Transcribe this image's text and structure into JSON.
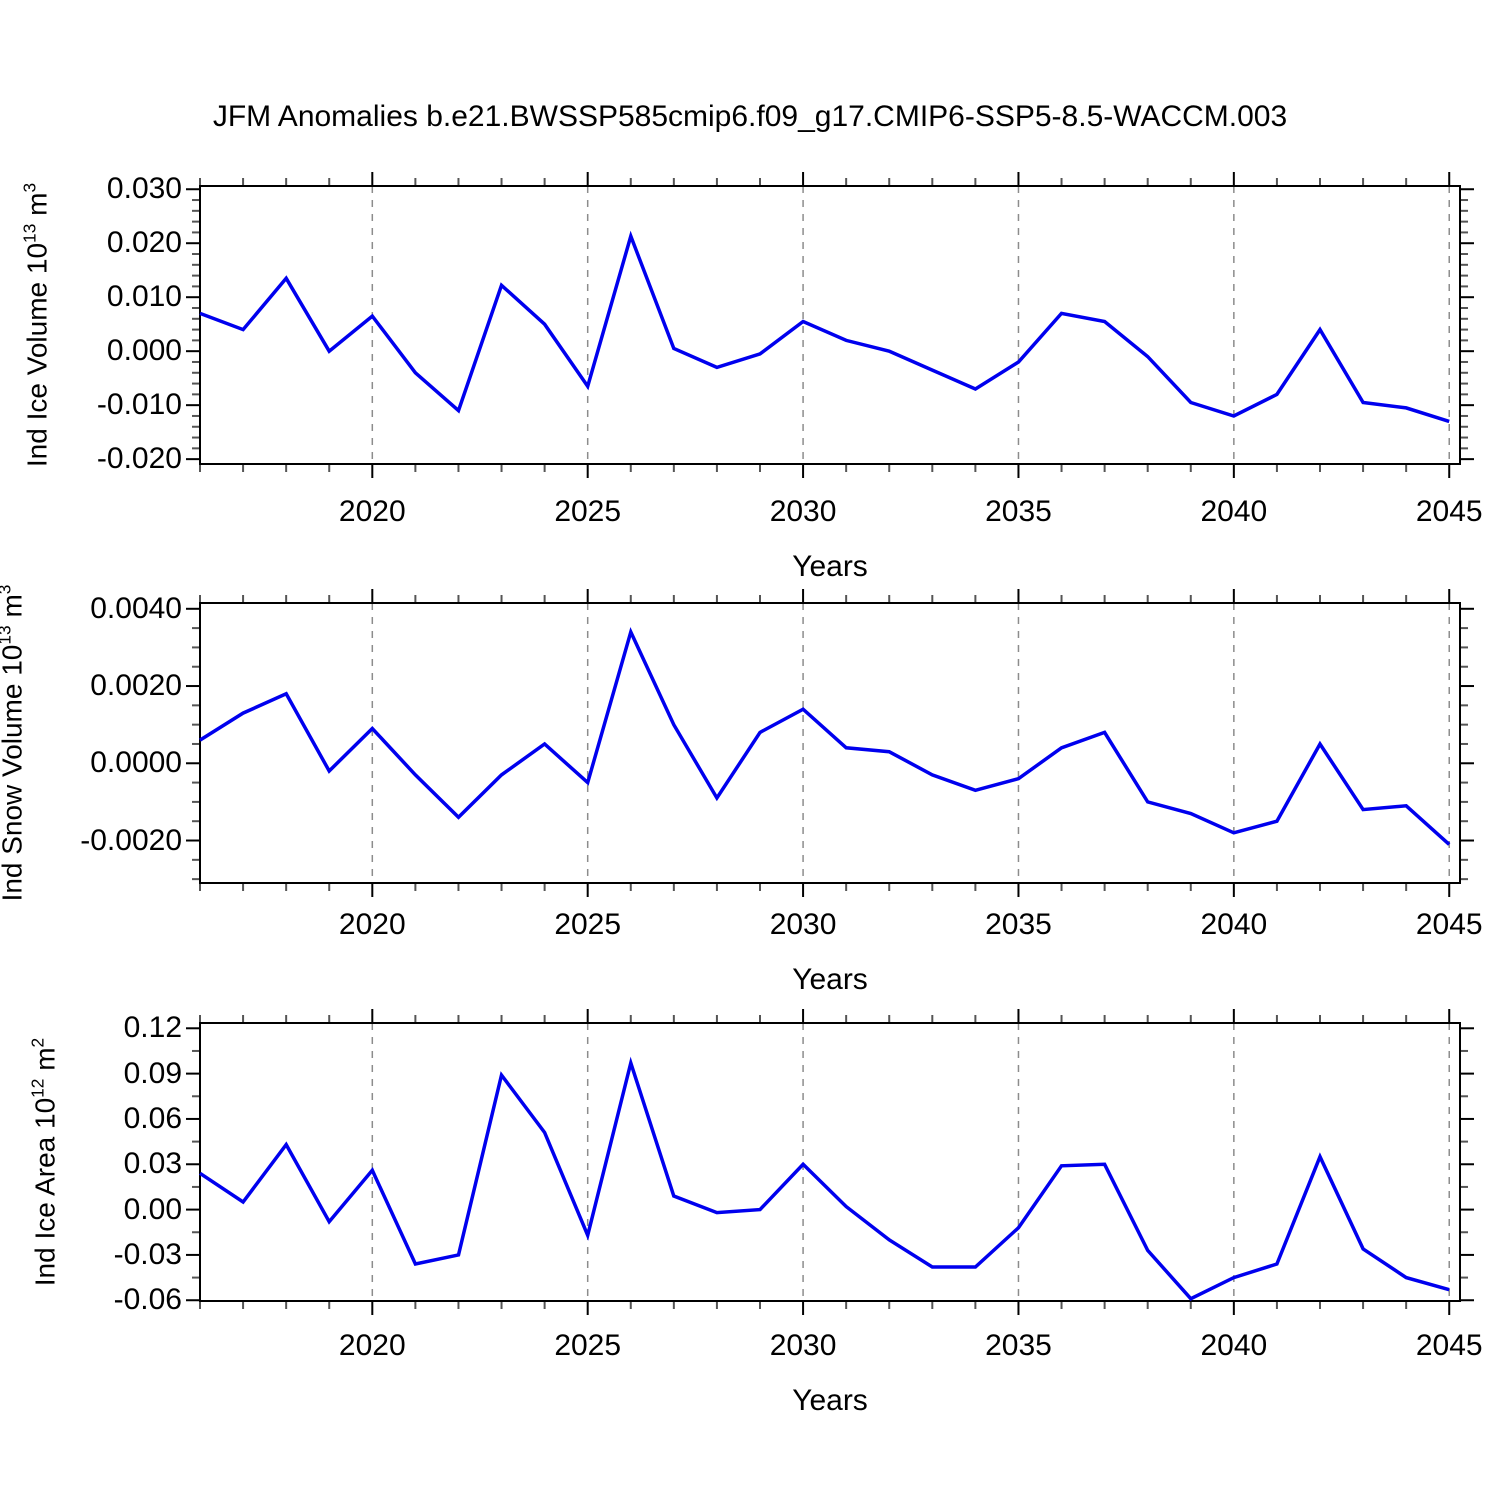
{
  "chart_data": {
    "type": "line",
    "title": "JFM Anomalies b.e21.BWSSP585cmip6.f09_g17.CMIP6-SSP5-8.5-WACCM.003",
    "line_color": "#0000EE",
    "grid_color": "#8c8c8c",
    "x": [
      2016,
      2017,
      2018,
      2019,
      2020,
      2021,
      2022,
      2023,
      2024,
      2025,
      2026,
      2027,
      2028,
      2029,
      2030,
      2031,
      2032,
      2033,
      2034,
      2035,
      2036,
      2037,
      2038,
      2039,
      2040,
      2041,
      2042,
      2043,
      2044,
      2045
    ],
    "x_range": [
      2016,
      2045.25
    ],
    "xtick_years": [
      2020,
      2025,
      2030,
      2035,
      2040,
      2045
    ],
    "xtick_labels": [
      "2020",
      "2025",
      "2030",
      "2035",
      "2040",
      "2045"
    ],
    "grid_on": true,
    "panels": [
      {
        "ylabel": {
          "base": "Ind Ice Volume 10",
          "exp": "13",
          "unit": " m",
          "unit_exp": "3"
        },
        "xlabel": "Years",
        "ylim": [
          -0.0209,
          0.0306
        ],
        "ymajor_ticks": [
          0.03,
          0.02,
          0.01,
          0.0,
          -0.01,
          -0.02
        ],
        "ytick_labels": [
          "0.030",
          "0.020",
          "0.010",
          "0.000",
          "-0.010",
          "-0.020"
        ],
        "yminor_step": 0.002,
        "values": [
          0.007,
          0.004,
          0.0135,
          0.0,
          0.0065,
          -0.004,
          -0.011,
          0.0122,
          0.005,
          -0.0065,
          0.0213,
          0.0005,
          -0.003,
          -0.0005,
          0.0055,
          0.002,
          0.0,
          -0.0035,
          -0.007,
          -0.002,
          0.007,
          0.0055,
          -0.001,
          -0.0095,
          -0.012,
          -0.008,
          0.004,
          -0.0095,
          -0.0105,
          -0.013
        ]
      },
      {
        "ylabel": {
          "base": "Ind Snow Volume 10",
          "exp": "13",
          "unit": " m",
          "unit_exp": "3"
        },
        "xlabel": "Years",
        "ylim": [
          -0.0031,
          0.00415
        ],
        "ymajor_ticks": [
          0.004,
          0.002,
          0.0,
          -0.002
        ],
        "ytick_labels": [
          "0.0040",
          "0.0020",
          "0.0000",
          "-0.0020"
        ],
        "yminor_step": 0.0005,
        "values": [
          0.0006,
          0.0013,
          0.0018,
          -0.0002,
          0.0009,
          -0.0003,
          -0.0014,
          -0.0003,
          0.0005,
          -0.0005,
          0.0034,
          0.001,
          -0.0009,
          0.0008,
          0.0014,
          0.0004,
          0.0003,
          -0.0003,
          -0.0007,
          -0.0004,
          0.0004,
          0.0008,
          -0.001,
          -0.0013,
          -0.0018,
          -0.0015,
          0.0005,
          -0.0012,
          -0.0011,
          -0.0021
        ]
      },
      {
        "ylabel": {
          "base": "Ind Ice Area 10",
          "exp": "12",
          "unit": " m",
          "unit_exp": "2"
        },
        "xlabel": "Years",
        "ylim": [
          -0.0605,
          0.1235
        ],
        "ymajor_ticks": [
          0.12,
          0.09,
          0.06,
          0.03,
          0.0,
          -0.03,
          -0.06
        ],
        "ytick_labels": [
          "0.12",
          "0.09",
          "0.06",
          "0.03",
          "0.00",
          "-0.03",
          "-0.06"
        ],
        "yminor_step": 0.015,
        "values": [
          0.024,
          0.005,
          0.043,
          -0.008,
          0.026,
          -0.036,
          -0.03,
          0.089,
          0.051,
          -0.017,
          0.097,
          0.009,
          -0.002,
          0.0,
          0.03,
          0.002,
          -0.02,
          -0.038,
          -0.038,
          -0.012,
          0.029,
          0.03,
          -0.027,
          -0.059,
          -0.045,
          -0.036,
          0.035,
          -0.026,
          -0.045,
          -0.053
        ]
      }
    ]
  }
}
